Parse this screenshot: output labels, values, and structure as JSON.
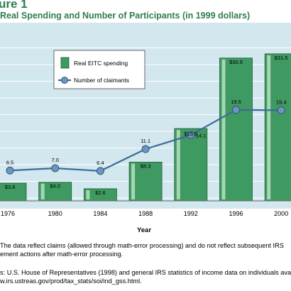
{
  "figure_label": "ure 1",
  "title": "Real Spending and Number of Participants (in 1999 dollars)",
  "colors": {
    "panel_background": "#d3e7ef",
    "bar_fill": "#3f9a62",
    "bar_highlight": "#b7e0c1",
    "line": "#3c6b95",
    "marker": "#6f94bd",
    "heading_green": "#2e7d4f"
  },
  "chart_data": {
    "type": "bar",
    "categories": [
      "1976",
      "1980",
      "1984",
      "1988",
      "1992",
      "1996",
      "2000"
    ],
    "xlabel": "Year",
    "ylim": [
      0,
      33
    ],
    "series": [
      {
        "name": "Real EITC spending",
        "type": "bar",
        "values": [
          3.8,
          4.0,
          2.6,
          8.3,
          15.5,
          30.6,
          31.5
        ],
        "labels": [
          "$3.8",
          "$4.0",
          "$2.6",
          "$8.3",
          "$15.5",
          "$30.6",
          "$31.5"
        ]
      },
      {
        "name": "Number of claimants",
        "type": "line",
        "values": [
          6.5,
          7.0,
          6.4,
          11.1,
          14.1,
          19.5,
          19.4
        ],
        "labels": [
          "6.5",
          "7.0",
          "6.4",
          "11.1",
          "14.1",
          "19.5",
          "19.4"
        ]
      }
    ],
    "legend_position": "top-left",
    "grid": true
  },
  "notes": {
    "line1": "The data reflect claims (allowed through math-error processing) and do not reflect subsequent IRS",
    "line2": "ement actions after math-error processing.",
    "line3": "s: U.S. House of Representatives (1998) and general IRS statistics of income data on individuals availa",
    "line4": "w.irs.ustreas.gov/prod/tax_stats/soi/ind_gss.html."
  }
}
